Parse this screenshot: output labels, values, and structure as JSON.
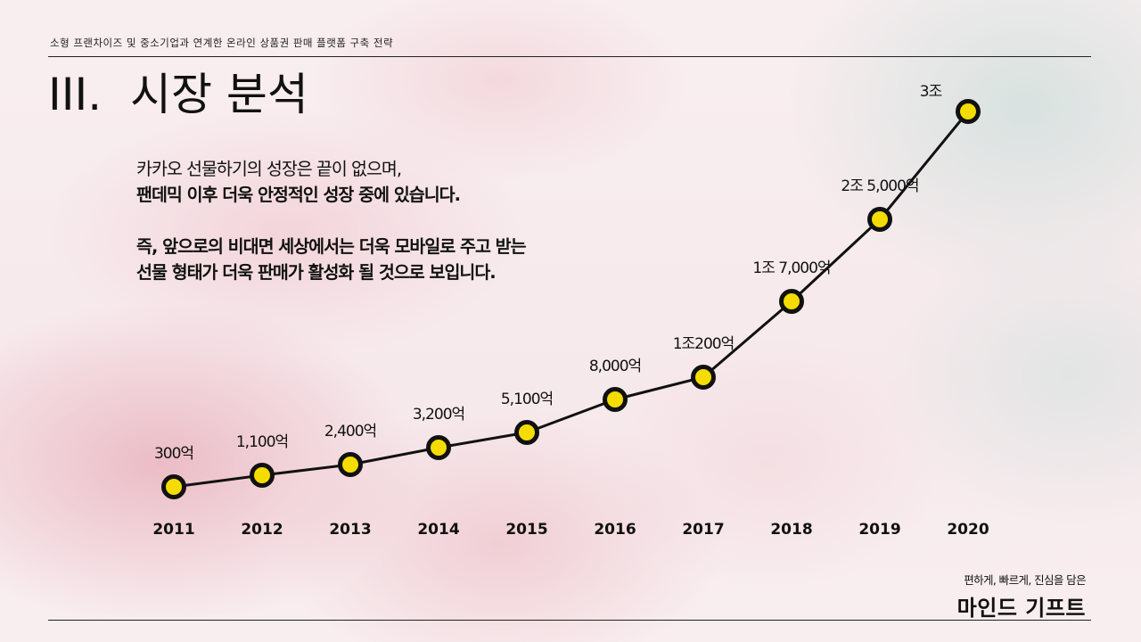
{
  "header": {
    "subtitle": "소형 프랜차이즈 및 중소기업과 연계한 온라인 상품권 판매 플랫폼 구축 전략",
    "section_number": "III.",
    "section_title": "시장 분석"
  },
  "body": {
    "line1": "카카오 선물하기의 성장은 끝이 없으며,",
    "line2": "팬데믹 이후 더욱 안정적인 성장 중에 있습니다.",
    "line3": "즉, 앞으로의 비대면 세상에서는 더욱 모바일로 주고 받는",
    "line4": "선물 형태가 더욱 판매가 활성화 될 것으로 보입니다."
  },
  "brand": {
    "tagline": "편하게, 빠르게, 진심을 담은",
    "name": "마인드 기프트"
  },
  "chart_data": {
    "type": "line",
    "categories": [
      "2011",
      "2012",
      "2013",
      "2014",
      "2015",
      "2016",
      "2017",
      "2018",
      "2019",
      "2020"
    ],
    "values": [
      300,
      1100,
      2400,
      3200,
      5100,
      8000,
      10200,
      17000,
      25000,
      30000
    ],
    "data_labels": [
      "300억",
      "1,100억",
      "2,400억",
      "3,200억",
      "5,100억",
      "8,000억",
      "1조200억",
      "1조 7,000억",
      "2조 5,000억",
      "3조"
    ],
    "unit": "억",
    "grid": false,
    "colors": {
      "line": "#111111",
      "marker_fill": "#f5dc00",
      "marker_stroke": "#111111"
    }
  }
}
